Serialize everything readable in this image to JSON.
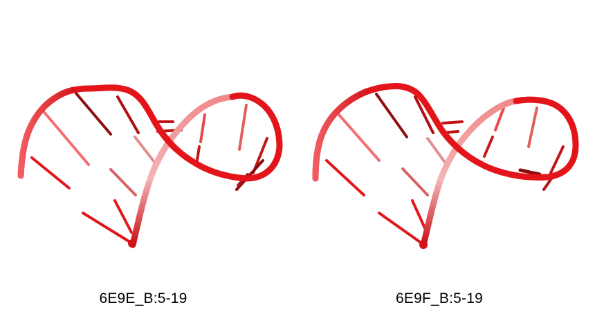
{
  "structures": [
    {
      "label": "6E9E_B:5-19",
      "image": "rna-hairpin-cartoon",
      "color": "#e8161b"
    },
    {
      "label": "6E9F_B:5-19",
      "image": "rna-hairpin-cartoon",
      "color": "#e8161b"
    }
  ]
}
